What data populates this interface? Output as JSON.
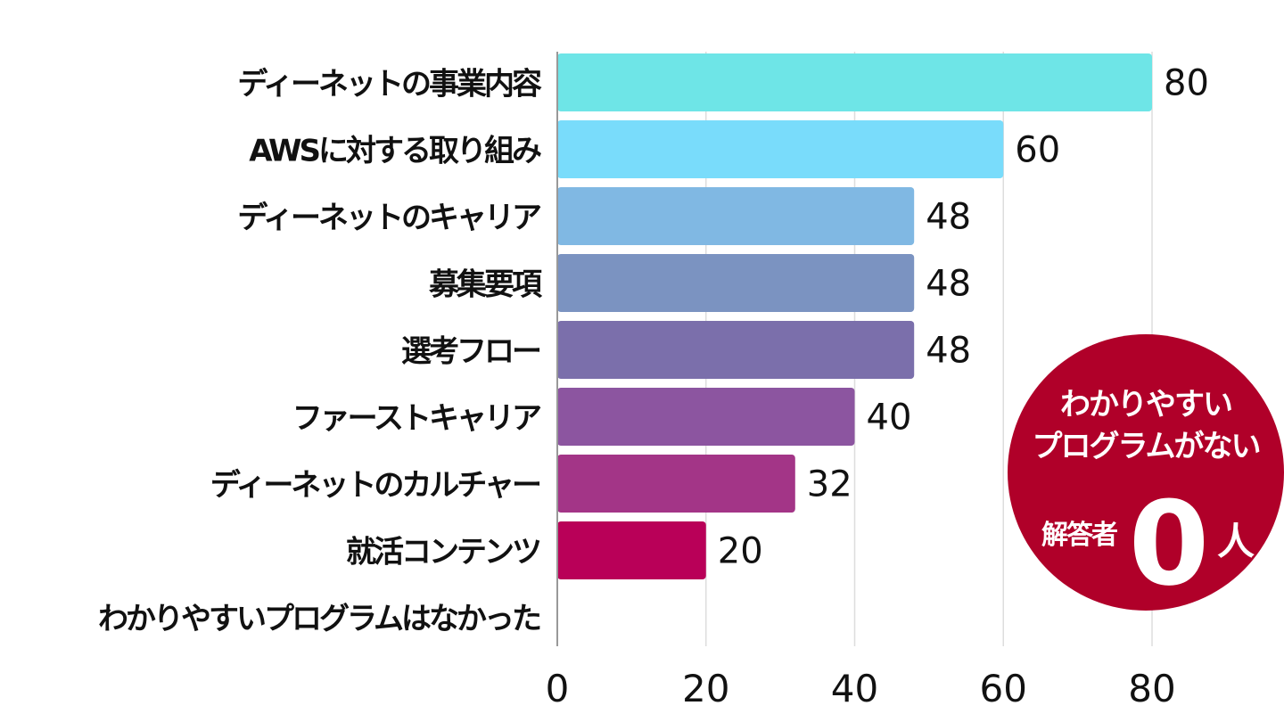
{
  "chart_data": {
    "type": "bar",
    "orientation": "horizontal",
    "categories": [
      "ディーネットの事業内容",
      "AWSに対する取り組み",
      "ディーネットのキャリア",
      "募集要項",
      "選考フロー",
      "ファーストキャリア",
      "ディーネットのカルチャー",
      "就活コンテンツ",
      "わかりやすいプログラムはなかった"
    ],
    "values": [
      80,
      60,
      48,
      48,
      48,
      40,
      32,
      20,
      0
    ],
    "value_labels": [
      "80",
      "60",
      "48",
      "48",
      "48",
      "40",
      "32",
      "20",
      ""
    ],
    "colors": [
      "#6ee5e7",
      "#79dcfb",
      "#80b8e3",
      "#7b93c1",
      "#7b6fab",
      "#8c55a0",
      "#a33587",
      "#b90058",
      "#b90058"
    ],
    "xlim": [
      0,
      80
    ],
    "xticks": [
      0,
      20,
      40,
      60,
      80
    ],
    "xtick_labels": [
      "0",
      "20",
      "40",
      "60",
      "80"
    ],
    "grid": true,
    "title": "",
    "xlabel": "",
    "ylabel": ""
  },
  "badge": {
    "line1": "わかりやすい",
    "line2": "プログラムがない",
    "prefix": "解答者",
    "number": "0",
    "suffix": "人",
    "color": "#b00029"
  }
}
